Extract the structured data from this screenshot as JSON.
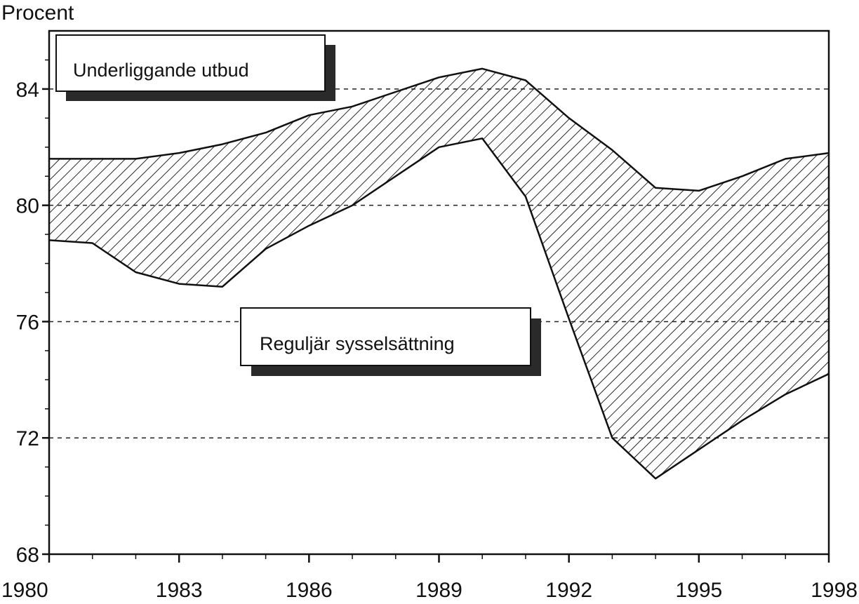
{
  "chart_data": {
    "type": "area",
    "ylabel": "Procent",
    "xlabel": "",
    "x": [
      1980,
      1981,
      1982,
      1983,
      1984,
      1985,
      1986,
      1987,
      1988,
      1989,
      1990,
      1991,
      1992,
      1993,
      1994,
      1995,
      1996,
      1997,
      1998
    ],
    "xticks": [
      "1980",
      "1983",
      "1986",
      "1989",
      "1992",
      "1995",
      "1998"
    ],
    "yticks": [
      "68",
      "72",
      "76",
      "80",
      "84"
    ],
    "xlim": [
      1980,
      1998
    ],
    "ylim": [
      68,
      86
    ],
    "grid": "horizontal dashed at 72, 76, 80, 84",
    "series": [
      {
        "name": "Underliggande utbud",
        "values": [
          81.6,
          81.6,
          81.6,
          81.8,
          82.1,
          82.5,
          83.1,
          83.4,
          83.9,
          84.4,
          84.7,
          84.3,
          83.0,
          81.9,
          80.6,
          80.5,
          81.0,
          81.6,
          81.8
        ]
      },
      {
        "name": "Reguljär sysselsättning",
        "values": [
          78.8,
          78.7,
          77.7,
          77.3,
          77.2,
          78.5,
          79.3,
          80.0,
          81.0,
          82.0,
          82.3,
          80.3,
          76.1,
          72.0,
          70.6,
          71.6,
          72.6,
          73.5,
          74.2
        ]
      }
    ],
    "legend_boxes": [
      {
        "label": "Underliggande utbud",
        "placement": "top-left"
      },
      {
        "label": "Reguljär sysselsättning",
        "placement": "center"
      }
    ],
    "colors": {
      "ink": "#111111",
      "background": "#ffffff",
      "shadow": "#2a2a2a"
    }
  }
}
